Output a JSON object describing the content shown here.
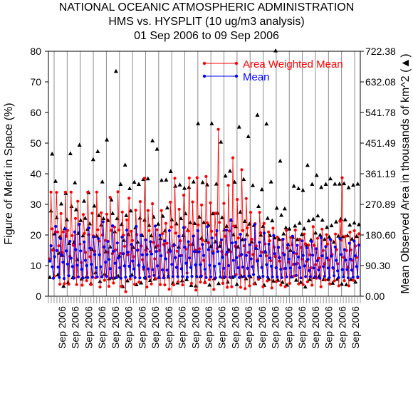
{
  "title_lines": [
    "NATIONAL OCEANIC ATMOSPHERIC ADMINISTRATION",
    "HMS vs. HYSPLIT (10 ug/m3 analysis)",
    "01 Sep 2006 to 09 Sep 2006"
  ],
  "chart_data": {
    "type": "line",
    "ylabel": "Figure of Merit in Space (%)",
    "y2label": "Mean Observed Area in thousands of km^2 (▲)",
    "ylim": [
      0,
      80
    ],
    "yticks": [
      0,
      10,
      20,
      30,
      40,
      50,
      60,
      70,
      80
    ],
    "y2lim": [
      0,
      722.38
    ],
    "y2ticks": [
      "0.00",
      "90.30",
      "180.60",
      "270.89",
      "361.19",
      "451.49",
      "541.78",
      "632.08",
      "722.38"
    ],
    "xtick_label": "Sep 2006",
    "xtick_count": 23,
    "grid_vertical_count": 24,
    "legend": [
      {
        "name": "Area Weighted Mean",
        "color": "#ff0000"
      },
      {
        "name": "Mean",
        "color": "#0000ff"
      }
    ],
    "series": [
      {
        "name": "Area Weighted Mean",
        "color": "#ff0000",
        "values": [
          12.2,
          34.0,
          22.0,
          15.0,
          6.5,
          21.0,
          33.9,
          21.0,
          16.5,
          3.9,
          27.0,
          14.3,
          21.0,
          4.1,
          34.0,
          19.6,
          21.5,
          3.9,
          13.0,
          34.0,
          19.8,
          16.6,
          6.0,
          25.4,
          3.8,
          31.0,
          23.4,
          17.0,
          11.0,
          3.6,
          26.7,
          20.5,
          14.3,
          5.1,
          34.0,
          20.1,
          12.9,
          3.8,
          27.1,
          19.7,
          14.7,
          6.0,
          34.0,
          21.7,
          18.0,
          3.0,
          27.2,
          20.0,
          16.1,
          5.2,
          18.2,
          26.8,
          14.4,
          3.2,
          32.3,
          21.5,
          13.9,
          4.3,
          22.6,
          15.1,
          6.1,
          34.1,
          21.6,
          14.0,
          3.2,
          27.5,
          19.9,
          16.3,
          1.5,
          24.9,
          13.5,
          32.0,
          5.6,
          21.2,
          18.2,
          12.9,
          3.9,
          28.1,
          20.1,
          15.1,
          4.6,
          30.9,
          16.4,
          11.9,
          8.8,
          38.5,
          15.0,
          3.0,
          28.0,
          21.4,
          14.6,
          4.0,
          30.2,
          17.6,
          12.2,
          5.7,
          21.7,
          16.5,
          14.9,
          3.8,
          28.0,
          20.4,
          16.9,
          3.7,
          23.8,
          17.3,
          14.4,
          2.3,
          30.7,
          22.6,
          16.4,
          3.7,
          38.5,
          20.6,
          14.7,
          4.7,
          28.4,
          18.1,
          13.3,
          3.7,
          33.0,
          22.5,
          15.4,
          7.6,
          21.3,
          38.6,
          16.8,
          4.2,
          30.8,
          19.7,
          15.1,
          2.0,
          38.7,
          23.3,
          15.5,
          4.6,
          29.8,
          18.3,
          11.7,
          4.4,
          39.1,
          24.0,
          17.5,
          5.4,
          30.5,
          21.2,
          14.6,
          2.2,
          27.1,
          20.1,
          15.6,
          54.5,
          24.1,
          17.5,
          14.6,
          4.2,
          30.3,
          19.6,
          13.6,
          2.9,
          36.2,
          21.3,
          14.5,
          3.1,
          45.2,
          22.9,
          16.3,
          7.1,
          31.6,
          19.0,
          13.2,
          2.9,
          41.3,
          21.5,
          16.5,
          2.5,
          31.9,
          22.3,
          14.3,
          3.4,
          27.4,
          18.6,
          13.6,
          4.0,
          23.7,
          16.4,
          11.9,
          5.5,
          27.4,
          20.7,
          14.4,
          3.1,
          23.8,
          17.1,
          13.2,
          5.0,
          21.0,
          18.1,
          11.6,
          2.7,
          22.2,
          16.0,
          13.0,
          4.8,
          19.3,
          15.9,
          11.5,
          3.6,
          18.4,
          14.0,
          9.0,
          3.1,
          21.5,
          15.7,
          11.1,
          4.2,
          19.2,
          16.8,
          10.4,
          6.6,
          21.6,
          13.9,
          10.7,
          4.0,
          18.6,
          15.9,
          12.1,
          3.8,
          20.3,
          17.1,
          11.4,
          4.7,
          16.7,
          13.5,
          9.3,
          3.6,
          22.7,
          16.6,
          10.3,
          5.9,
          18.9,
          12.4,
          9.5,
          3.1,
          21.9,
          14.9,
          10.6,
          5.3,
          20.1,
          17.0,
          11.8,
          4.0,
          18.2,
          13.6,
          9.1,
          5.0,
          20.3,
          15.2,
          10.6,
          3.4,
          24.5,
          18.3,
          38.7,
          12.7,
          5.1,
          19.6,
          14.9,
          9.5,
          3.4,
          20.9,
          15.1,
          11.7,
          5.2,
          21.4,
          16.4,
          12.7,
          6.0,
          20.4
        ]
      },
      {
        "name": "Mean",
        "color": "#0000ff",
        "values": [
          11.5,
          16.5,
          9.6,
          5.9,
          12.9,
          22.8,
          14.9,
          9.5,
          6.1,
          18.8,
          13.5,
          11.1,
          5.8,
          22.0,
          14.8,
          10.5,
          6.7,
          17.9,
          12.4,
          9.7,
          5.9,
          21.0,
          15.2,
          10.1,
          6.3,
          23.5,
          14.8,
          8.8,
          6.0,
          17.7,
          11.7,
          10.0,
          6.1,
          22.3,
          15.7,
          10.4,
          6.2,
          19.4,
          13.6,
          9.3,
          6.3,
          18.8,
          13.5,
          9.6,
          6.3,
          24.3,
          16.1,
          11.1,
          6.5,
          17.9,
          12.0,
          9.0,
          6.0,
          23.0,
          14.7,
          10.8,
          6.1,
          17.4,
          12.5,
          9.3,
          5.9,
          19.3,
          13.9,
          9.9,
          6.2,
          21.6,
          14.4,
          9.8,
          6.5,
          16.9,
          11.5,
          8.9,
          6.1,
          22.8,
          15.0,
          10.1,
          6.0,
          19.9,
          13.5,
          9.5,
          6.0,
          18.4,
          13.6,
          8.9,
          6.4,
          17.8,
          13.8,
          8.7,
          6.8,
          22.9,
          14.6,
          9.9,
          6.1,
          19.9,
          13.2,
          8.6,
          6.0,
          18.1,
          12.2,
          8.5,
          6.6,
          21.4,
          14.7,
          10.4,
          6.4,
          16.6,
          12.6,
          9.4,
          6.4,
          19.6,
          13.2,
          9.0,
          6.4,
          22.4,
          16.0,
          10.8,
          6.2,
          17.8,
          12.5,
          9.4,
          6.5,
          19.6,
          14.6,
          10.2,
          6.4,
          21.4,
          14.5,
          10.3,
          6.6,
          16.9,
          13.3,
          8.8,
          6.1,
          22.7,
          15.2,
          10.1,
          6.3,
          19.0,
          14.0,
          9.8,
          6.0,
          21.4,
          14.6,
          10.6,
          6.3,
          18.4,
          12.7,
          9.1,
          6.3,
          21.6,
          14.4,
          10.0,
          6.2,
          24.9,
          17.4,
          11.7,
          6.5,
          17.6,
          12.6,
          9.3,
          6.1,
          20.2,
          13.6,
          9.5,
          6.5,
          18.5,
          13.3,
          9.1,
          6.6,
          16.8,
          12.2,
          9.6,
          7.1,
          23.4,
          15.6,
          11.5,
          6.2,
          17.6,
          13.2,
          9.4,
          6.5,
          20.6,
          14.6,
          10.3,
          6.2,
          17.0,
          12.5,
          9.8,
          6.3,
          19.8,
          13.9,
          9.3,
          6.3,
          16.0,
          12.6,
          8.8,
          6.1,
          18.6,
          13.5,
          9.1,
          6.3,
          16.8,
          12.1,
          9.2,
          6.3,
          19.6,
          14.2,
          10.5,
          6.8,
          16.6,
          12.8,
          9.3,
          6.0,
          18.1,
          13.3,
          9.9,
          6.4,
          15.8,
          12.0,
          8.4,
          6.4,
          17.9,
          13.4,
          9.2,
          6.3,
          15.5,
          11.6,
          8.6,
          5.9,
          19.1,
          13.2,
          9.7,
          6.5,
          16.2,
          12.5,
          9.2,
          6.1,
          18.5,
          13.1,
          9.3,
          6.7,
          16.1,
          11.7,
          8.3,
          6.1,
          18.8,
          13.6,
          8.7,
          6.3,
          15.2,
          11.8,
          8.7,
          6.0,
          17.3,
          12.1,
          8.5,
          6.2,
          18.0,
          13.2,
          9.7,
          6.3,
          16.7
        ]
      },
      {
        "name": "Mean Observed Area",
        "axis": "right",
        "marker": "triangle",
        "color": "#000000",
        "values": [
          6.2,
          27.9,
          46.5,
          15.4,
          20.4,
          37.6,
          25.7,
          7.0,
          14.1,
          19.5,
          30.2,
          13.4,
          3.3,
          22.1,
          33.6,
          25.0,
          4.5,
          17.3,
          46.6,
          29.4,
          6.1,
          17.6,
          37.1,
          28.3,
          12.0,
          20.6,
          49.4,
          24.8,
          5.7,
          19.8,
          31.1,
          25.5,
          6.3,
          21.9,
          33.9,
          23.7,
          4.2,
          15.3,
          44.7,
          29.5,
          7.7,
          19.7,
          47.3,
          26.4,
          4.9,
          23.3,
          37.4,
          25.4,
          7.3,
          14.6,
          51.1,
          24.8,
          5.8,
          16.1,
          31.5,
          27.1,
          6.0,
          21.1,
          73.5,
          25.4,
          6.6,
          13.2,
          36.6,
          23.5,
          3.2,
          18.3,
          42.9,
          26.4,
          5.1,
          20.2,
          35.2,
          27.9,
          7.0,
          16.0,
          37.3,
          22.4,
          3.8,
          17.7,
          36.6,
          25.6,
          4.4,
          19.9,
          38.2,
          24.9,
          6.0,
          15.8,
          38.4,
          23.2,
          5.2,
          19.8,
          50.8,
          25.9,
          5.7,
          16.1,
          48.1,
          23.6,
          6.2,
          18.9,
          37.9,
          26.2,
          6.4,
          21.4,
          38.0,
          28.9,
          6.3,
          15.4,
          40.8,
          25.0,
          4.3,
          17.0,
          36.0,
          23.7,
          4.4,
          16.1,
          36.4,
          25.4,
          5.1,
          19.9,
          35.3,
          27.0,
          5.5,
          21.6,
          35.6,
          24.1,
          3.6,
          17.0,
          37.4,
          23.8,
          3.4,
          14.7,
          56.4,
          25.9,
          6.5,
          19.0,
          37.2,
          24.1,
          4.7,
          18.2,
          36.4,
          23.3,
          3.7,
          16.3,
          56.4,
          27.0,
          5.8,
          17.8,
          36.7,
          27.2,
          4.2,
          16.4,
          50.4,
          25.7,
          6.2,
          21.7,
          39.3,
          22.9,
          4.7,
          15.2,
          40.9,
          24.9,
          6.2,
          20.1,
          37.3,
          22.8,
          3.9,
          16.1,
          55.3,
          27.5,
          6.5,
          18.5,
          38.2,
          24.5,
          5.8,
          20.1,
          52.2,
          23.6,
          6.4,
          17.8,
          36.2,
          23.2,
          4.2,
          15.7,
          59.2,
          29.4,
          6.2,
          20.0,
          34.9,
          22.9,
          3.6,
          14.5,
          56.3,
          25.5,
          5.6,
          19.9,
          37.4,
          24.7,
          5.0,
          19.1,
          80.2,
          28.8,
          5.3,
          18.6,
          44.2,
          26.5,
          4.6,
          20.4,
          28.6,
          22.4,
          3.7,
          16.9,
          22.0,
          15.0,
          6.4,
          19.3,
          36.0,
          23.0,
          5.3,
          18.5,
          35.2,
          23.9,
          4.6,
          20.2,
          34.6,
          22.1,
          3.1,
          16.8,
          42.8,
          24.7,
          5.5,
          18.4,
          36.6,
          25.2,
          6.2,
          20.7,
          39.5,
          26.3,
          6.5,
          20.0,
          35.6,
          24.9,
          5.5,
          18.6,
          36.6,
          22.5,
          5.6,
          19.4,
          38.4,
          23.1,
          4.3,
          17.7,
          36.7,
          24.3,
          5.6,
          19.7,
          36.7,
          25.2,
          4.0,
          19.5,
          36.8,
          25.0,
          3.8,
          19.8,
          35.5,
          23.3,
          5.5,
          18.7,
          36.3,
          24.0,
          4.7,
          19.6,
          36.7,
          23.4
        ]
      }
    ]
  }
}
